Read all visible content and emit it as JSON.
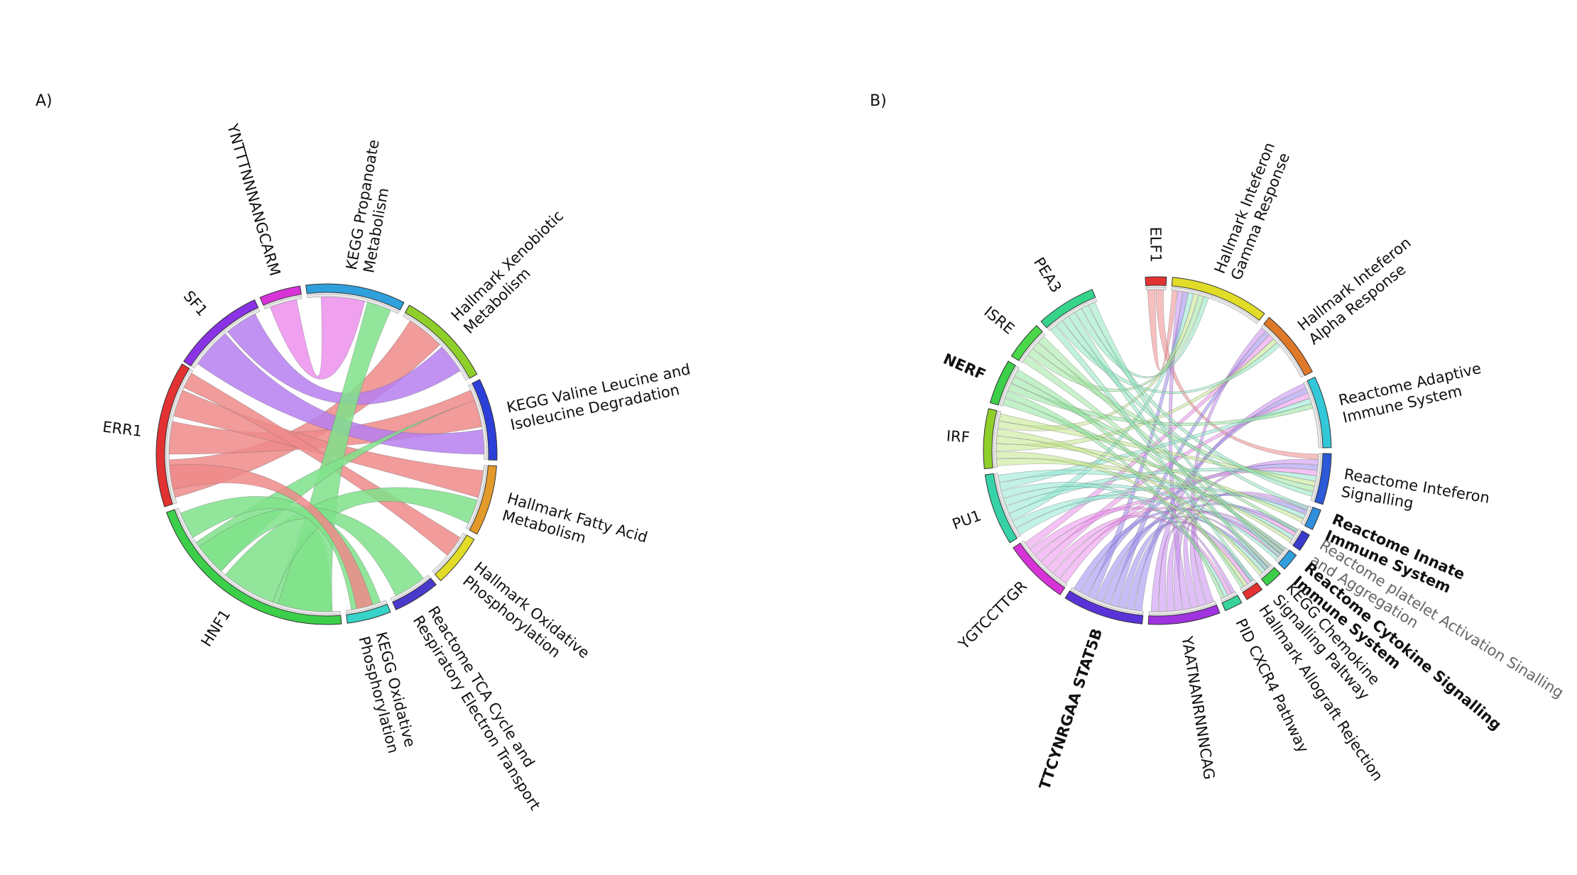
{
  "panels": [
    {
      "label": "A)",
      "segments": [
        {
          "name": "ERR1",
          "lines": [
            "ERR1"
          ],
          "color": "#e23232",
          "ribbon": "#ef8a8a"
        },
        {
          "name": "SF1",
          "lines": [
            "SF1"
          ],
          "color": "#8a33e6",
          "ribbon": "#b67ff0"
        },
        {
          "name": "YNTTTNNNANGCARM",
          "lines": [
            "YNTTTNNNANGCARM"
          ],
          "color": "#d733d7",
          "ribbon": "#ec8fec"
        },
        {
          "name": "KEGG Propanoate Metabolism",
          "lines": [
            "KEGG Propanoate",
            "Metabolism"
          ],
          "color": "#2fa0dc"
        },
        {
          "name": "Hallmark Xenobiotic Metabolism",
          "lines": [
            "Hallmark Xenobiotic",
            "Metabolism"
          ],
          "color": "#8fcf2a"
        },
        {
          "name": "KEGG Valine Leucine and Isoleucine Degradation",
          "lines": [
            "KEGG Valine Leucine and",
            "Isoleucine Degradation"
          ],
          "color": "#2c3fd8"
        },
        {
          "name": "Hallmark Fatty Acid Metabolism",
          "lines": [
            "Hallmark Fatty Acid",
            "Metabolism"
          ],
          "color": "#e39a2a"
        },
        {
          "name": "Hallmark Oxidative Phosphorylation",
          "lines": [
            "Hallmark Oxidative",
            "Phosphorylation"
          ],
          "color": "#e0dc28"
        },
        {
          "name": "Reactome TCA Cycle and Respiratory Electron Transport",
          "lines": [
            "Reactome TCA Cycle and",
            "Respiratory Electron Transport"
          ],
          "color": "#4a3acb"
        },
        {
          "name": "KEGG Oxidative Phosphorylation",
          "lines": [
            "KEGG Oxidative",
            "Phosphorylation"
          ],
          "color": "#36d3c8"
        },
        {
          "name": "HNF1",
          "lines": [
            "HNF1"
          ],
          "color": "#3ccf4a",
          "ribbon": "#7fe28a"
        }
      ]
    },
    {
      "label": "B)",
      "segments": [
        {
          "name": "ELF1",
          "lines": [
            "ELF1"
          ],
          "color": "#e23232",
          "ribbon": "#ef8a8a"
        },
        {
          "name": "Hallmark Inteferon Gamma Response",
          "lines": [
            "Hallmark Inteferon",
            "Gamma Response"
          ],
          "color": "#e0dc28"
        },
        {
          "name": "Hallmark Inteferon Alpha Response",
          "lines": [
            "Hallmark Inteferon",
            "Alpha Response"
          ],
          "color": "#e0782a"
        },
        {
          "name": "Reactome Adaptive Immune System",
          "lines": [
            "Reactome Adaptive",
            "Immune System"
          ],
          "color": "#32c8d8"
        },
        {
          "name": "Reactome Inteferon Signalling",
          "lines": [
            "Reactome Inteferon",
            "Signalling"
          ],
          "color": "#2c5ad8"
        },
        {
          "name": "Reactome Innate Immune System",
          "lines": [
            "Reactome Innate",
            "Immune System"
          ],
          "color": "#2f8fdc"
        },
        {
          "name": "Reactome platelet Activation Sinalling and Aggregation",
          "lines": [
            "Reactome platelet Activation Sinalling",
            "and Aggregation"
          ],
          "color": "#3a3acb"
        },
        {
          "name": "Reactome Cytokine Signalling Immune System",
          "lines": [
            "Reactome Cytokine Signalling",
            "Immune System"
          ],
          "color": "#2fa0dc"
        },
        {
          "name": "KEGG Chemokine Signalling Paltway",
          "lines": [
            "KEGG Chemokine",
            "Signalling Paltway"
          ],
          "color": "#3ccf4a"
        },
        {
          "name": "Hallmark Allograft Rejection",
          "lines": [
            "Hallmark Allograft Rejection"
          ],
          "color": "#e23232"
        },
        {
          "name": "PID CXCR4 Pathway",
          "lines": [
            "PID CXCR4 Pathway"
          ],
          "color": "#36d39a"
        },
        {
          "name": "YAATNANRNNNCAG",
          "lines": [
            "YAATNANRNNNCAG"
          ],
          "color": "#a033e0",
          "ribbon": "#c88af0"
        },
        {
          "name": "TTCYNRGAA STAT5B",
          "lines": [
            "TTCYNRGAA STAT5B"
          ],
          "color": "#5a33d8",
          "ribbon": "#9a88f0"
        },
        {
          "name": "YGTCCTTGR",
          "lines": [
            "YGTCCTTGR"
          ],
          "color": "#d733d7",
          "ribbon": "#ec8fec"
        },
        {
          "name": "PU1",
          "lines": [
            "PU1"
          ],
          "color": "#36d3a8",
          "ribbon": "#8fe8d2"
        },
        {
          "name": "IRF",
          "lines": [
            "IRF"
          ],
          "color": "#8fcf2a",
          "ribbon": "#c2e88a"
        },
        {
          "name": "NERF",
          "lines": [
            "NERF"
          ],
          "color": "#3ccf4a",
          "ribbon": "#8fe39a"
        },
        {
          "name": "ISRE",
          "lines": [
            "ISRE"
          ],
          "color": "#4ad84a",
          "ribbon": "#9fe89f"
        },
        {
          "name": "PEA3",
          "lines": [
            "PEA3"
          ],
          "color": "#36d38a",
          "ribbon": "#8fe8c0"
        }
      ]
    }
  ]
}
